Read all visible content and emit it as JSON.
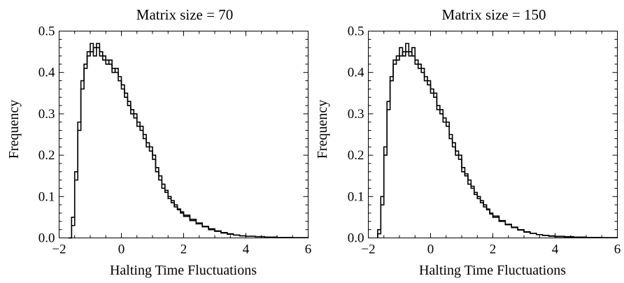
{
  "figure": {
    "background": "#ffffff",
    "ink": "#000000"
  },
  "chart_data": [
    {
      "type": "line",
      "step": true,
      "title": "Matrix size = 70",
      "xlabel": "Halting Time Fluctuations",
      "ylabel": "Frequency",
      "xlim": [
        -2,
        6
      ],
      "ylim": [
        0,
        0.5
      ],
      "xticks": [
        -2,
        0,
        2,
        4,
        6
      ],
      "yticks": [
        0.0,
        0.1,
        0.2,
        0.3,
        0.4,
        0.5
      ],
      "xtick_labels": [
        "−2",
        "0",
        "2",
        "4",
        "6"
      ],
      "ytick_labels": [
        "0.0",
        "0.1",
        "0.2",
        "0.3",
        "0.4",
        "0.5"
      ],
      "grid": false,
      "series": [
        {
          "x": [
            -1.7,
            -1.6,
            -1.5,
            -1.4,
            -1.3,
            -1.2,
            -1.1,
            -1.0,
            -0.9,
            -0.8,
            -0.7,
            -0.6,
            -0.5,
            -0.4,
            -0.3,
            -0.2,
            -0.1,
            0.0,
            0.1,
            0.2,
            0.3,
            0.4,
            0.5,
            0.6,
            0.7,
            0.8,
            0.9,
            1.0,
            1.1,
            1.2,
            1.3,
            1.4,
            1.5,
            1.6,
            1.7,
            1.8,
            1.9,
            2.0,
            2.2,
            2.4,
            2.6,
            2.8,
            3.0,
            3.2,
            3.4,
            3.6,
            3.8,
            4.0,
            4.3,
            4.6,
            5.0,
            5.5,
            6.0
          ],
          "y": [
            0.0,
            0.03,
            0.14,
            0.26,
            0.36,
            0.41,
            0.44,
            0.45,
            0.46,
            0.46,
            0.45,
            0.44,
            0.43,
            0.42,
            0.41,
            0.4,
            0.39,
            0.37,
            0.35,
            0.33,
            0.31,
            0.29,
            0.28,
            0.27,
            0.25,
            0.23,
            0.21,
            0.19,
            0.17,
            0.15,
            0.13,
            0.115,
            0.1,
            0.09,
            0.08,
            0.07,
            0.063,
            0.055,
            0.045,
            0.036,
            0.028,
            0.022,
            0.017,
            0.013,
            0.01,
            0.007,
            0.005,
            0.004,
            0.003,
            0.002,
            0.001,
            0.0005,
            0.0
          ]
        },
        {
          "x": [
            -1.7,
            -1.6,
            -1.5,
            -1.4,
            -1.3,
            -1.2,
            -1.1,
            -1.0,
            -0.9,
            -0.8,
            -0.7,
            -0.6,
            -0.5,
            -0.4,
            -0.3,
            -0.2,
            -0.1,
            0.0,
            0.1,
            0.2,
            0.3,
            0.4,
            0.5,
            0.6,
            0.7,
            0.8,
            0.9,
            1.0,
            1.1,
            1.2,
            1.3,
            1.4,
            1.5,
            1.6,
            1.7,
            1.8,
            1.9,
            2.0,
            2.2,
            2.4,
            2.6,
            2.8,
            3.0,
            3.2,
            3.4,
            3.6,
            3.8,
            4.0,
            4.3,
            4.6,
            5.0,
            5.5,
            6.0
          ],
          "y": [
            0.0,
            0.05,
            0.16,
            0.28,
            0.38,
            0.42,
            0.45,
            0.47,
            0.44,
            0.47,
            0.44,
            0.43,
            0.42,
            0.43,
            0.4,
            0.41,
            0.38,
            0.36,
            0.34,
            0.32,
            0.3,
            0.3,
            0.27,
            0.26,
            0.24,
            0.22,
            0.22,
            0.2,
            0.16,
            0.14,
            0.12,
            0.11,
            0.095,
            0.085,
            0.075,
            0.068,
            0.06,
            0.052,
            0.042,
            0.034,
            0.027,
            0.02,
            0.016,
            0.012,
            0.009,
            0.007,
            0.005,
            0.004,
            0.003,
            0.002,
            0.001,
            0.0005,
            0.0
          ]
        }
      ]
    },
    {
      "type": "line",
      "step": true,
      "title": "Matrix size = 150",
      "xlabel": "Halting Time Fluctuations",
      "ylabel": "Frequency",
      "xlim": [
        -2,
        6
      ],
      "ylim": [
        0,
        0.5
      ],
      "xticks": [
        -2,
        0,
        2,
        4,
        6
      ],
      "yticks": [
        0.0,
        0.1,
        0.2,
        0.3,
        0.4,
        0.5
      ],
      "xtick_labels": [
        "−2",
        "0",
        "2",
        "4",
        "6"
      ],
      "ytick_labels": [
        "0.0",
        "0.1",
        "0.2",
        "0.3",
        "0.4",
        "0.5"
      ],
      "grid": false,
      "series": [
        {
          "x": [
            -1.7,
            -1.6,
            -1.5,
            -1.4,
            -1.3,
            -1.2,
            -1.1,
            -1.0,
            -0.9,
            -0.8,
            -0.7,
            -0.6,
            -0.5,
            -0.4,
            -0.3,
            -0.2,
            -0.1,
            0.0,
            0.1,
            0.2,
            0.3,
            0.4,
            0.5,
            0.6,
            0.7,
            0.8,
            0.9,
            1.0,
            1.1,
            1.2,
            1.3,
            1.4,
            1.5,
            1.6,
            1.7,
            1.8,
            1.9,
            2.0,
            2.2,
            2.4,
            2.6,
            2.8,
            3.0,
            3.2,
            3.4,
            3.6,
            3.8,
            4.0,
            4.3,
            4.6,
            5.0,
            5.5,
            6.0
          ],
          "y": [
            0.01,
            0.08,
            0.2,
            0.31,
            0.38,
            0.42,
            0.43,
            0.44,
            0.45,
            0.45,
            0.45,
            0.44,
            0.43,
            0.42,
            0.4,
            0.39,
            0.37,
            0.36,
            0.34,
            0.32,
            0.31,
            0.29,
            0.27,
            0.25,
            0.23,
            0.21,
            0.19,
            0.17,
            0.155,
            0.14,
            0.125,
            0.11,
            0.1,
            0.09,
            0.08,
            0.07,
            0.06,
            0.053,
            0.042,
            0.033,
            0.026,
            0.02,
            0.015,
            0.011,
            0.008,
            0.006,
            0.005,
            0.004,
            0.003,
            0.002,
            0.001,
            0.0005,
            0.0
          ]
        },
        {
          "x": [
            -1.7,
            -1.6,
            -1.5,
            -1.4,
            -1.3,
            -1.2,
            -1.1,
            -1.0,
            -0.9,
            -0.8,
            -0.7,
            -0.6,
            -0.5,
            -0.4,
            -0.3,
            -0.2,
            -0.1,
            0.0,
            0.1,
            0.2,
            0.3,
            0.4,
            0.5,
            0.6,
            0.7,
            0.8,
            0.9,
            1.0,
            1.1,
            1.2,
            1.3,
            1.4,
            1.5,
            1.6,
            1.7,
            1.8,
            1.9,
            2.0,
            2.2,
            2.4,
            2.6,
            2.8,
            3.0,
            3.2,
            3.4,
            3.6,
            3.8,
            4.0,
            4.3,
            4.6,
            5.0,
            5.5,
            6.0
          ],
          "y": [
            0.02,
            0.1,
            0.22,
            0.33,
            0.39,
            0.43,
            0.44,
            0.46,
            0.44,
            0.47,
            0.44,
            0.46,
            0.42,
            0.41,
            0.41,
            0.38,
            0.38,
            0.35,
            0.35,
            0.31,
            0.3,
            0.28,
            0.28,
            0.24,
            0.22,
            0.2,
            0.2,
            0.16,
            0.15,
            0.13,
            0.12,
            0.105,
            0.095,
            0.085,
            0.075,
            0.068,
            0.058,
            0.05,
            0.04,
            0.032,
            0.025,
            0.019,
            0.014,
            0.011,
            0.008,
            0.006,
            0.004,
            0.003,
            0.002,
            0.002,
            0.001,
            0.0005,
            0.0
          ]
        }
      ]
    }
  ]
}
